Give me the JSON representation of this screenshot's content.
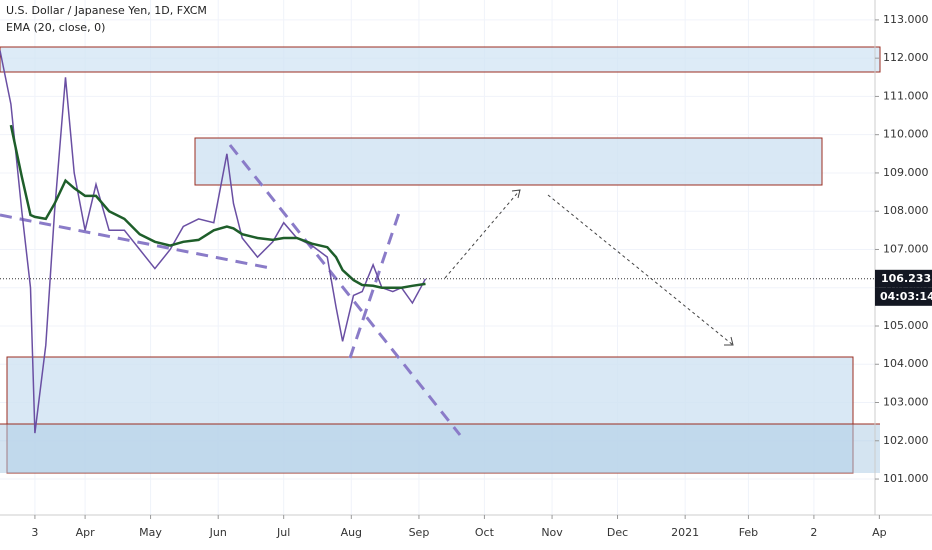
{
  "chart_data": {
    "type": "line",
    "title": "U.S. Dollar / Japanese Yen, 1D, FXCM",
    "subtitle": "EMA (20, close, 0)",
    "x": [
      -8,
      -3,
      2,
      6,
      8,
      13,
      17,
      22,
      26,
      31,
      36,
      42,
      49,
      56,
      63,
      70,
      76,
      83,
      90,
      96,
      99,
      103,
      110,
      117,
      122,
      128,
      135,
      142,
      146,
      149,
      154,
      158,
      163,
      167,
      172,
      176,
      181,
      187
    ],
    "series": [
      {
        "name": "USDJPY",
        "color": "#6a4fa3",
        "values": [
          112.2,
          110.8,
          108,
          106,
          102.2,
          104.5,
          108,
          111.5,
          109,
          107.5,
          108.7,
          107.5,
          107.5,
          107,
          106.5,
          107,
          107.6,
          107.8,
          107.7,
          109.5,
          108.2,
          107.3,
          106.8,
          107.2,
          107.7,
          107.3,
          107.1,
          106.8,
          105.5,
          104.6,
          105.8,
          105.9,
          106.6,
          106,
          105.9,
          106,
          105.6,
          106.233
        ]
      },
      {
        "name": "EMA (20, close, 0)",
        "color": "#1e5e2a",
        "values": [
          null,
          110.25,
          108.9,
          107.9,
          107.85,
          107.8,
          108.2,
          108.8,
          108.6,
          108.4,
          108.4,
          108.0,
          107.8,
          107.4,
          107.2,
          107.1,
          107.2,
          107.25,
          107.5,
          107.6,
          107.55,
          107.4,
          107.3,
          107.25,
          107.3,
          107.3,
          107.15,
          107.06,
          106.8,
          106.46,
          106.2,
          106.07,
          106.05,
          106.0,
          106.0,
          106.0,
          106.05,
          106.1
        ]
      }
    ],
    "xlim": [
      -8,
      393
    ],
    "xticks": [
      {
        "value": 8,
        "label": "3"
      },
      {
        "value": 31,
        "label": "Apr"
      },
      {
        "value": 61,
        "label": "May"
      },
      {
        "value": 92,
        "label": "Jun"
      },
      {
        "value": 122,
        "label": "Jul"
      },
      {
        "value": 153,
        "label": "Aug"
      },
      {
        "value": 184,
        "label": "Sep"
      },
      {
        "value": 214,
        "label": "Oct"
      },
      {
        "value": 245,
        "label": "Nov"
      },
      {
        "value": 275,
        "label": "Dec"
      },
      {
        "value": 306,
        "label": "2021"
      },
      {
        "value": 335,
        "label": "Feb"
      },
      {
        "value": 365,
        "label": "2"
      },
      {
        "value": 395,
        "label": "Ap"
      }
    ],
    "ylim": [
      100.06,
      113.52
    ],
    "yticks": [
      {
        "value": 101,
        "label": "101.000"
      },
      {
        "value": 102,
        "label": "102.000"
      },
      {
        "value": 103,
        "label": "103.000"
      },
      {
        "value": 104,
        "label": "104.000"
      },
      {
        "value": 105,
        "label": "105.000"
      },
      {
        "value": 106,
        "label": "106.000"
      },
      {
        "value": 107,
        "label": "107.000"
      },
      {
        "value": 108,
        "label": "108.000"
      },
      {
        "value": 109,
        "label": "109.000"
      },
      {
        "value": 110,
        "label": "110.000"
      },
      {
        "value": 111,
        "label": "111.000"
      },
      {
        "value": 112,
        "label": "112.000"
      },
      {
        "value": 113,
        "label": "113.000"
      }
    ],
    "last_price": 106.233,
    "countdown": "04:03:14",
    "grid": true
  }
}
